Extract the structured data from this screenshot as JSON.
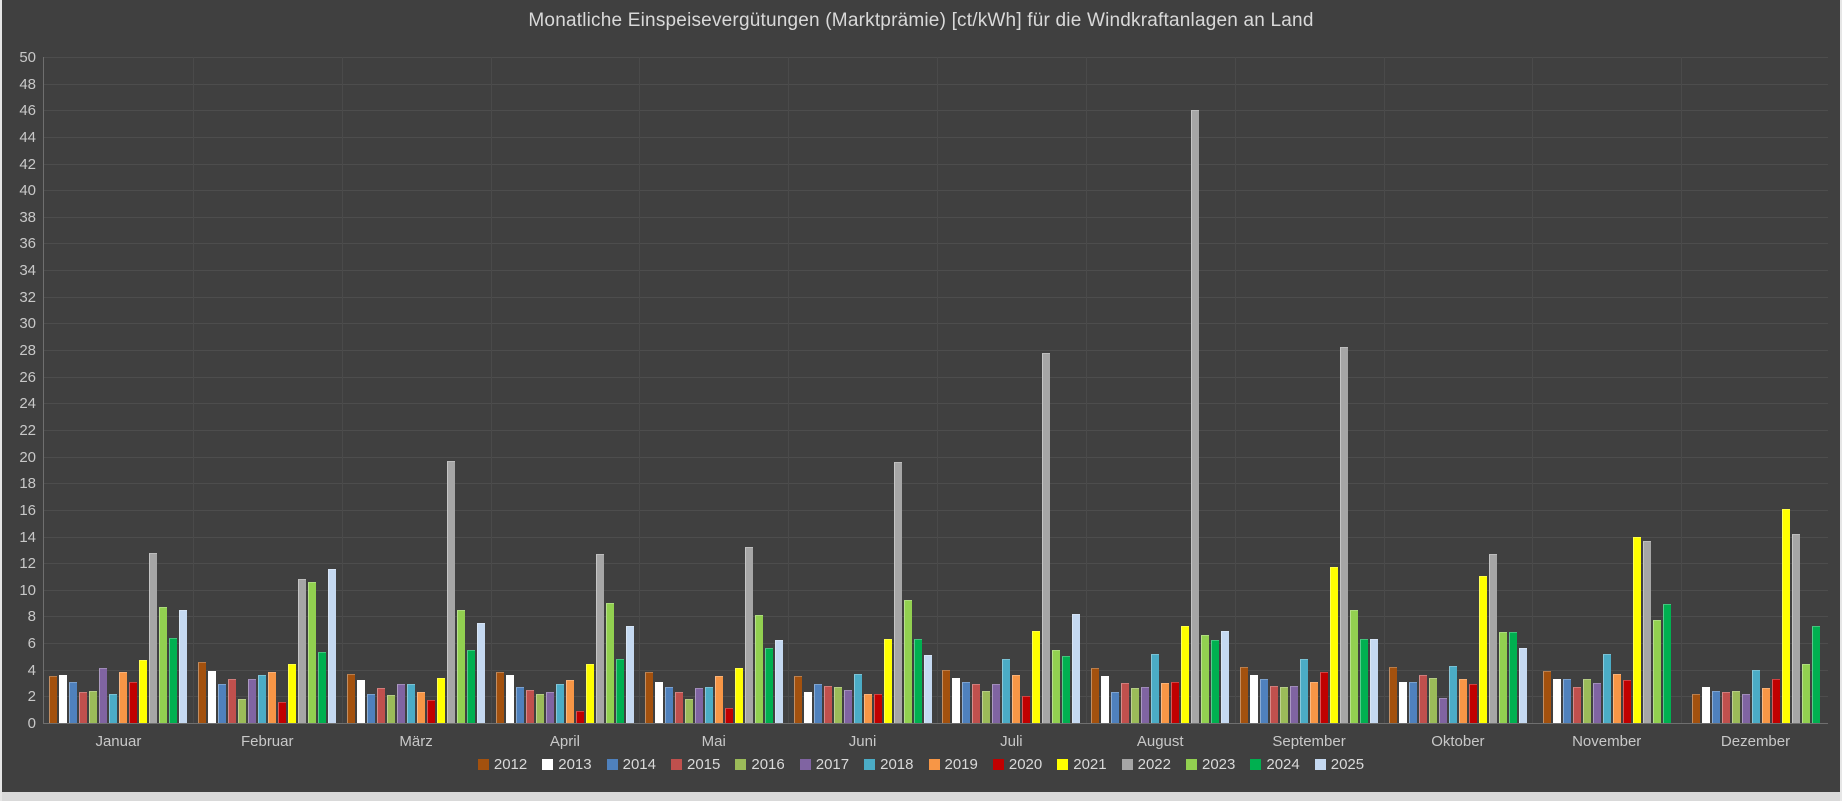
{
  "title": "Monatliche Einspeisevergütungen (Marktprämie)  [ct/kWh] für die Windkraftanlagen an Land",
  "colors": {
    "background": "#404040",
    "gridline": "#4d4d4d",
    "axis_line": "#6f6f6f",
    "text": "#c8c8c8",
    "title_text": "#d9d9d9",
    "bottom_strip": "#d9d9d9"
  },
  "chart_data": {
    "type": "bar",
    "title": "Monatliche Einspeisevergütungen (Marktprämie)  [ct/kWh] für die Windkraftanlagen an Land",
    "xlabel": "",
    "ylabel": "",
    "ylim": [
      0,
      50
    ],
    "ytick_step": 2,
    "grid": true,
    "legend_position": "bottom",
    "categories": [
      "Januar",
      "Februar",
      "März",
      "April",
      "Mai",
      "Juni",
      "Juli",
      "August",
      "September",
      "Oktober",
      "November",
      "Dezember"
    ],
    "series": [
      {
        "name": "2012",
        "color": "#A3510E",
        "values": [
          3.5,
          4.6,
          3.7,
          3.8,
          3.8,
          3.5,
          4.0,
          4.1,
          4.2,
          4.2,
          3.9,
          2.2
        ]
      },
      {
        "name": "2013",
        "color": "#FFFFFF",
        "values": [
          3.6,
          3.9,
          3.2,
          3.6,
          3.1,
          2.3,
          3.4,
          3.5,
          3.6,
          3.1,
          3.3,
          2.7
        ]
      },
      {
        "name": "2014",
        "color": "#4F81BD",
        "values": [
          3.1,
          2.9,
          2.2,
          2.7,
          2.7,
          2.9,
          3.1,
          2.3,
          3.3,
          3.1,
          3.3,
          2.4
        ]
      },
      {
        "name": "2015",
        "color": "#C0504D",
        "values": [
          2.3,
          3.3,
          2.6,
          2.5,
          2.3,
          2.8,
          2.9,
          3.0,
          2.8,
          3.6,
          2.7,
          2.3
        ]
      },
      {
        "name": "2016",
        "color": "#9BBB59",
        "values": [
          2.4,
          1.8,
          2.1,
          2.2,
          1.8,
          2.7,
          2.4,
          2.6,
          2.7,
          3.4,
          3.3,
          2.4
        ]
      },
      {
        "name": "2017",
        "color": "#8064A2",
        "values": [
          4.1,
          3.3,
          2.9,
          2.3,
          2.6,
          2.5,
          2.9,
          2.7,
          2.8,
          1.9,
          3.0,
          2.2
        ]
      },
      {
        "name": "2018",
        "color": "#4BACC6",
        "values": [
          2.2,
          3.6,
          2.9,
          2.9,
          2.7,
          3.7,
          4.8,
          5.2,
          4.8,
          4.3,
          5.2,
          4.0
        ]
      },
      {
        "name": "2019",
        "color": "#F79646",
        "values": [
          3.8,
          3.8,
          2.3,
          3.2,
          3.5,
          2.2,
          3.6,
          3.0,
          3.1,
          3.3,
          3.7,
          2.6
        ]
      },
      {
        "name": "2020",
        "color": "#C00000",
        "values": [
          3.1,
          1.6,
          1.7,
          0.9,
          1.1,
          2.2,
          2.0,
          3.1,
          3.8,
          2.9,
          3.2,
          3.3
        ]
      },
      {
        "name": "2021",
        "color": "#FFFF00",
        "values": [
          4.7,
          4.4,
          3.4,
          4.4,
          4.1,
          6.3,
          6.9,
          7.3,
          11.7,
          11.0,
          14.0,
          16.1
        ]
      },
      {
        "name": "2022",
        "color": "#A6A6A6",
        "values": [
          12.8,
          10.8,
          19.7,
          12.7,
          13.2,
          19.6,
          27.8,
          46.0,
          28.2,
          12.7,
          13.7,
          14.2
        ]
      },
      {
        "name": "2023",
        "color": "#92D050",
        "values": [
          8.7,
          10.6,
          8.5,
          9.0,
          8.1,
          9.2,
          5.5,
          6.6,
          8.5,
          6.8,
          7.7,
          4.4
        ]
      },
      {
        "name": "2024",
        "color": "#00B050",
        "values": [
          6.4,
          5.3,
          5.5,
          4.8,
          5.6,
          6.3,
          5.0,
          6.2,
          6.3,
          6.8,
          8.9,
          7.3
        ]
      },
      {
        "name": "2025",
        "color": "#C5D9F1",
        "values": [
          8.5,
          11.6,
          7.5,
          7.3,
          6.2,
          5.1,
          8.2,
          6.9,
          6.3,
          5.6,
          null,
          null
        ]
      }
    ]
  }
}
